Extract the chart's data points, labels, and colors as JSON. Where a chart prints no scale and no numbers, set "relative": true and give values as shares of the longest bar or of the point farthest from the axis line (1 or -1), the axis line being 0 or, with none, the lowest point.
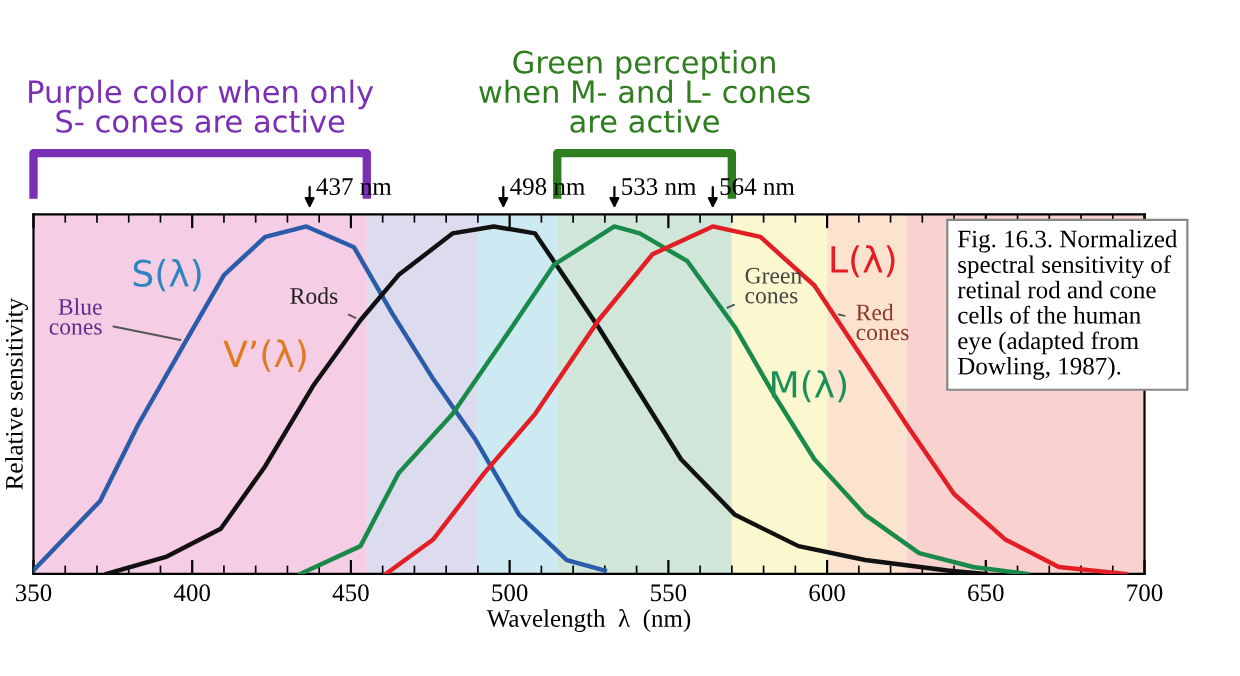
{
  "chart_data": {
    "type": "line",
    "relative": true,
    "xlabel": "Wavelength  λ  (nm)",
    "ylabel": "Relative sensitivity",
    "xlim": [
      350,
      700
    ],
    "xticks": [
      350,
      400,
      450,
      500,
      550,
      600,
      650,
      700
    ],
    "grid": false,
    "legend": false,
    "marker": "none",
    "line_style": "solid",
    "series": [
      {
        "name": "S(λ)",
        "color": "#2a5caa",
        "x": [
          350,
          371,
          383,
          398,
          410,
          423,
          436,
          451,
          463,
          476,
          489,
          503,
          518,
          530
        ],
        "values": [
          0.01,
          0.21,
          0.43,
          0.67,
          0.86,
          0.97,
          1.0,
          0.94,
          0.75,
          0.56,
          0.39,
          0.17,
          0.04,
          0.01
        ]
      },
      {
        "name": "V’(λ)",
        "color": "#111111",
        "x": [
          373,
          392,
          409,
          423,
          438,
          453,
          465,
          482,
          495,
          508,
          528,
          541,
          554,
          571,
          591,
          612,
          638,
          650
        ],
        "values": [
          0,
          0.05,
          0.13,
          0.31,
          0.54,
          0.73,
          0.86,
          0.98,
          1.0,
          0.98,
          0.71,
          0.52,
          0.33,
          0.17,
          0.08,
          0.04,
          0.01,
          0
        ]
      },
      {
        "name": "M(λ)",
        "color": "#1a8a4a",
        "x": [
          434,
          453,
          465,
          482,
          497,
          514,
          533,
          541,
          556,
          571,
          583,
          596,
          612,
          629,
          646,
          663
        ],
        "values": [
          0,
          0.08,
          0.29,
          0.46,
          0.66,
          0.89,
          1.0,
          0.98,
          0.9,
          0.71,
          0.52,
          0.33,
          0.17,
          0.06,
          0.02,
          0
        ]
      },
      {
        "name": "L(λ)",
        "color": "#e31e24",
        "x": [
          461,
          476,
          492,
          508,
          528,
          545,
          564,
          579,
          596,
          612,
          625,
          640,
          656,
          673,
          694
        ],
        "values": [
          0,
          0.1,
          0.29,
          0.46,
          0.73,
          0.92,
          1.0,
          0.97,
          0.83,
          0.61,
          0.43,
          0.23,
          0.1,
          0.02,
          0
        ]
      }
    ],
    "bands": [
      {
        "axis": "x",
        "from": 350,
        "to": 455,
        "color": "#f5cde4"
      },
      {
        "axis": "x",
        "from": 455,
        "to": 490,
        "color": "#dcdcee"
      },
      {
        "axis": "x",
        "from": 490,
        "to": 515,
        "color": "#cdeaf3"
      },
      {
        "axis": "x",
        "from": 515,
        "to": 570,
        "color": "#cfe6d9"
      },
      {
        "axis": "x",
        "from": 570,
        "to": 600,
        "color": "#fbf8d0"
      },
      {
        "axis": "x",
        "from": 600,
        "to": 625,
        "color": "#fce3cf"
      },
      {
        "axis": "x",
        "from": 625,
        "to": 700,
        "color": "#f9d2cf"
      }
    ],
    "annotations": [
      "Purple color when only\nS- cones are active",
      "Green perception\nwhen M- and L- cones\nare active",
      {
        "text": "437 nm",
        "x": 437,
        "y": 1
      },
      {
        "text": "498 nm",
        "x": 498,
        "y": 1
      },
      {
        "text": "533 nm",
        "x": 533,
        "y": 1
      },
      {
        "text": "564 nm",
        "x": 564,
        "y": 1
      },
      {
        "text": "Blue\ncones",
        "x": 398,
        "y": 0.67
      },
      {
        "text": "Rods",
        "x": 453,
        "y": 0.73
      },
      {
        "text": "Green\ncones",
        "x": 567,
        "y": 0.76
      },
      {
        "text": "Red\ncones",
        "x": 602,
        "y": 0.75
      },
      "Fig. 16.3. Normalized\nspectral sensitivity of\nretinal rod and cone\ncells of the human\neye (adapted from\nDowling, 1987)."
    ]
  }
}
